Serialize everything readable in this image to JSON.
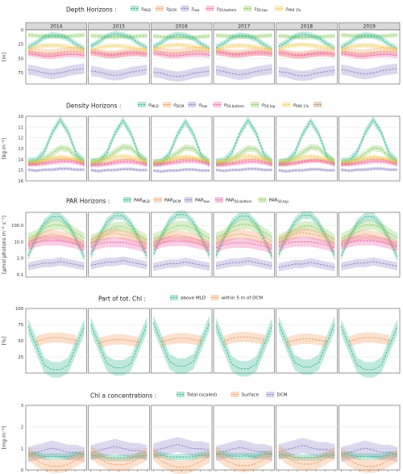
{
  "figure": {
    "years": [
      "2014",
      "2015",
      "2016",
      "2017",
      "2018",
      "2019"
    ],
    "colors": {
      "teal": "#2fb58f",
      "orange": "#f19a5e",
      "purple": "#8a7fc4",
      "pink": "#f05ea8",
      "green": "#86c95a",
      "yellow": "#f2c94c",
      "brown": "#b08a5a",
      "panel_bg": "#ffffff",
      "panel_border": "#555555",
      "strip_bg": "#d9d9d9",
      "grid": "#e6e6e6"
    }
  },
  "chart_data": [
    {
      "type": "line",
      "id": "depth",
      "legend_title": "Depth Horizons :",
      "ylabel": "[m]",
      "y_ticks": [
        "0",
        "25",
        "50",
        "75"
      ],
      "ylim": [
        0,
        95
      ],
      "y_reversed": true,
      "show_strips": true,
      "legend": [
        {
          "sym": "z",
          "sub": "MLD",
          "color": "teal"
        },
        {
          "sym": "z",
          "sub": "DCM",
          "color": "orange"
        },
        {
          "sym": "z",
          "sub": "low",
          "color": "purple"
        },
        {
          "sym": "z",
          "sub": "50,bottom",
          "color": "pink"
        },
        {
          "sym": "z",
          "sub": "50,top",
          "color": "green"
        },
        {
          "sym": "z",
          "sub": "PAR 1%",
          "color": "yellow"
        }
      ],
      "series": [
        {
          "color": "green",
          "values": [
            10,
            11,
            12,
            13,
            12,
            12,
            11,
            10
          ],
          "band": 4
        },
        {
          "color": "teal",
          "values": [
            30,
            22,
            12,
            8,
            10,
            15,
            25,
            33
          ],
          "band": 5
        },
        {
          "color": "orange",
          "values": [
            38,
            40,
            42,
            42,
            40,
            38,
            38,
            40
          ],
          "band": 7
        },
        {
          "color": "pink",
          "values": [
            40,
            42,
            45,
            45,
            43,
            42,
            42,
            44
          ],
          "band": 5
        },
        {
          "color": "yellow",
          "values": [
            35,
            30,
            28,
            27,
            28,
            30,
            32,
            34
          ],
          "band": 4
        },
        {
          "color": "purple",
          "values": [
            72,
            74,
            78,
            80,
            78,
            74,
            72,
            70
          ],
          "band": 9
        }
      ]
    },
    {
      "type": "line",
      "id": "density",
      "legend_title": "Density Horizons :",
      "ylabel": "[kg m⁻³]",
      "y_ticks": [
        "10",
        "11",
        "12",
        "13",
        "14",
        "15",
        "16"
      ],
      "ylim": [
        10,
        16
      ],
      "y_reversed": true,
      "show_strips": false,
      "legend": [
        {
          "sym": "σ",
          "sub": "MLD",
          "color": "teal"
        },
        {
          "sym": "σ",
          "sub": "DCM",
          "color": "orange"
        },
        {
          "sym": "σ",
          "sub": "low",
          "color": "purple"
        },
        {
          "sym": "σ",
          "sub": "50,bottom",
          "color": "pink"
        },
        {
          "sym": "σ",
          "sub": "50,top",
          "color": "green"
        },
        {
          "sym": "σ",
          "sub": "PAR 1%",
          "color": "yellow"
        },
        {
          "sym": "",
          "sub": "",
          "color": "brown"
        }
      ],
      "series": [
        {
          "color": "teal",
          "values": [
            14.3,
            14.2,
            13.4,
            11.6,
            10.4,
            11.6,
            13.6,
            14.3
          ],
          "band": 0.35
        },
        {
          "color": "green",
          "values": [
            14.3,
            14.2,
            13.9,
            13.4,
            12.9,
            13.0,
            13.8,
            14.2
          ],
          "band": 0.3
        },
        {
          "color": "orange",
          "values": [
            14.4,
            14.4,
            14.3,
            14.1,
            14.0,
            14.0,
            14.2,
            14.4
          ],
          "band": 0.2
        },
        {
          "color": "yellow",
          "values": [
            14.3,
            14.2,
            14.0,
            13.8,
            13.7,
            13.8,
            14.0,
            14.2
          ],
          "band": 0.2
        },
        {
          "color": "pink",
          "values": [
            14.5,
            14.5,
            14.4,
            14.3,
            14.2,
            14.2,
            14.3,
            14.5
          ],
          "band": 0.2
        },
        {
          "color": "purple",
          "values": [
            15.0,
            15.1,
            15.0,
            15.0,
            14.9,
            14.9,
            15.0,
            15.0
          ],
          "band": 0.15
        }
      ]
    },
    {
      "type": "line",
      "id": "par",
      "legend_title": "PAR Horizons :",
      "ylabel": "[μmol photons m⁻² s⁻¹]",
      "y_ticks": [
        "0.1",
        "1.0",
        "10.0",
        "100.0"
      ],
      "ylim": [
        -1.15,
        2.8
      ],
      "y_log": true,
      "show_strips": false,
      "legend": [
        {
          "sym": "PAR",
          "sub": "MLD",
          "color": "teal"
        },
        {
          "sym": "PAR",
          "sub": "DCM",
          "color": "orange"
        },
        {
          "sym": "PAR",
          "sub": "low",
          "color": "purple"
        },
        {
          "sym": "PAR",
          "sub": "50,bottom",
          "color": "pink"
        },
        {
          "sym": "PAR",
          "sub": "50,top",
          "color": "green"
        }
      ],
      "series": [
        {
          "color": "teal",
          "values": [
            0.2,
            1.3,
            2.2,
            2.6,
            2.6,
            2.1,
            1.2,
            0.1
          ],
          "band": 0.25
        },
        {
          "color": "green",
          "values": [
            1.2,
            1.4,
            1.8,
            2.0,
            2.0,
            1.8,
            1.5,
            1.2
          ],
          "band": 0.3
        },
        {
          "color": "orange",
          "values": [
            0.9,
            1.2,
            1.4,
            1.5,
            1.4,
            1.3,
            1.1,
            0.8
          ],
          "band": 0.3
        },
        {
          "color": "pink",
          "values": [
            0.7,
            0.9,
            1.0,
            1.0,
            1.0,
            0.9,
            0.8,
            0.6
          ],
          "band": 0.3
        },
        {
          "color": "purple",
          "values": [
            -0.5,
            -0.4,
            -0.3,
            -0.3,
            -0.2,
            -0.3,
            -0.4,
            -0.5
          ],
          "band": 0.25
        }
      ]
    },
    {
      "type": "line",
      "id": "part",
      "legend_title": "Part of tot. Chl :",
      "ylabel": "[%]",
      "y_ticks": [
        "25",
        "50",
        "75",
        "100"
      ],
      "ylim": [
        0,
        100
      ],
      "show_strips": false,
      "legend": [
        {
          "sym": "above MLD",
          "sub": "",
          "color": "teal"
        },
        {
          "sym": "within 5 m of DCM",
          "sub": "",
          "color": "orange"
        }
      ],
      "series": [
        {
          "color": "teal",
          "values": [
            75,
            45,
            15,
            8,
            8,
            15,
            45,
            75
          ],
          "band": 12
        },
        {
          "color": "orange",
          "values": [
            null,
            48,
            52,
            54,
            54,
            52,
            50,
            null
          ],
          "band": 8
        }
      ]
    },
    {
      "type": "line",
      "id": "chla",
      "legend_title": "Chl a concentrations :",
      "ylabel": "[mg m⁻³]",
      "y_ticks": [
        "0",
        "1",
        "2",
        "3"
      ],
      "ylim": [
        0,
        3
      ],
      "show_strips": false,
      "show_x_ticks": true,
      "legend": [
        {
          "sym": "Total (scaled)",
          "sub": "",
          "color": "teal"
        },
        {
          "sym": "Surface",
          "sub": "",
          "color": "orange"
        },
        {
          "sym": "DCM",
          "sub": "",
          "color": "purple"
        }
      ],
      "series": [
        {
          "color": "purple",
          "values": [
            0.8,
            0.9,
            1.0,
            1.1,
            1.0,
            0.9,
            0.9,
            0.8
          ],
          "band": 0.35
        },
        {
          "color": "teal",
          "values": [
            0.7,
            0.7,
            0.6,
            0.6,
            0.6,
            0.6,
            0.7,
            0.7
          ],
          "band": 0.15
        },
        {
          "color": "orange",
          "values": [
            0.8,
            0.5,
            0.3,
            0.2,
            0.2,
            0.3,
            0.5,
            0.7
          ],
          "band": 0.3
        }
      ]
    }
  ]
}
